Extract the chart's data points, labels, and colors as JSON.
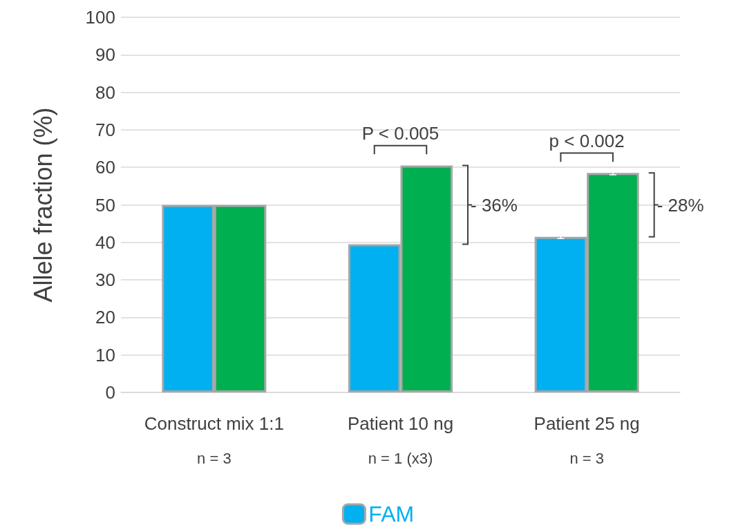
{
  "chart_data": {
    "type": "bar",
    "ylabel": "Allele fraction (%)",
    "categories": [
      "Construct mix 1:1\nn = 3",
      "Patient 10 ng\nn = 1 (x3)",
      "Patient 25 ng\nn = 3"
    ],
    "series": [
      {
        "name": "FAM",
        "color": "#00b0f0",
        "values": [
          50,
          39.5,
          41.5
        ],
        "errors": [
          null,
          null,
          0.5
        ]
      },
      {
        "color": "#00b050",
        "values": [
          50,
          60.5,
          58.5
        ],
        "errors": [
          null,
          null,
          0.5
        ]
      }
    ],
    "ylim": [
      0,
      100
    ],
    "yticks": [
      0,
      10,
      20,
      30,
      40,
      50,
      60,
      70,
      80,
      90,
      100
    ],
    "grid": "y",
    "legend": "bottom",
    "annotations": [
      "P < 0.005",
      "- 36%",
      "p < 0.002",
      "- 28%"
    ]
  }
}
